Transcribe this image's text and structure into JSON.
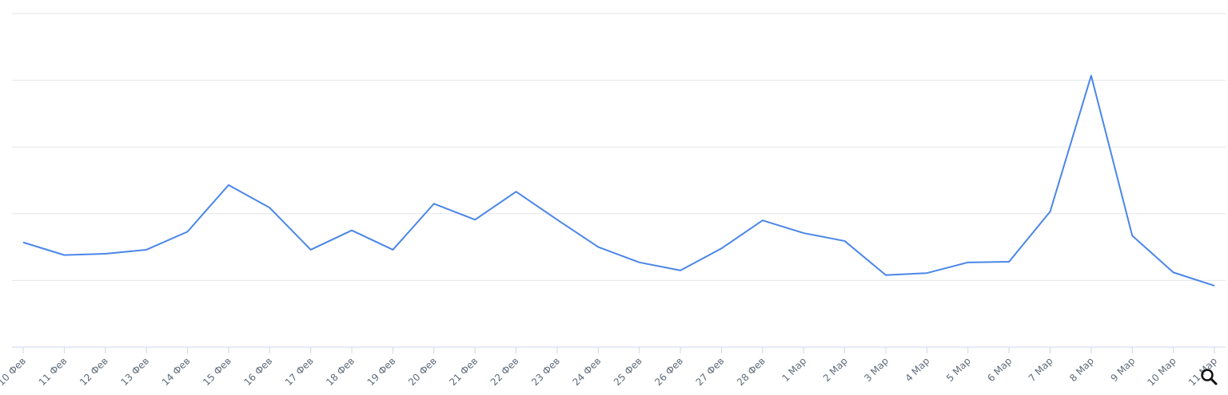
{
  "chart_data": {
    "type": "line",
    "categories": [
      "10 Фев",
      "11 Фев",
      "12 Фев",
      "13 Фев",
      "14 Фев",
      "15 Фев",
      "16 Фев",
      "17 Фев",
      "18 Фев",
      "19 Фев",
      "20 Фев",
      "21 Фев",
      "22 Фев",
      "23 Фев",
      "24 Фев",
      "25 Фев",
      "26 Фев",
      "27 Фев",
      "28 Фев",
      "1 Мар",
      "2 Мар",
      "3 Мар",
      "4 Мар",
      "5 Мар",
      "6 Мар",
      "7 Мар",
      "8 Мар",
      "9 Мар",
      "10 Мар",
      "11 Мар"
    ],
    "series": [
      {
        "color": "#4a86e8",
        "values": [
          1.57,
          1.38,
          1.4,
          1.46,
          1.73,
          2.43,
          2.09,
          1.46,
          1.75,
          1.46,
          2.15,
          1.91,
          2.33,
          1.91,
          1.5,
          1.27,
          1.15,
          1.48,
          1.9,
          1.71,
          1.59,
          1.08,
          1.11,
          1.27,
          1.28,
          2.03,
          4.07,
          1.67,
          1.12,
          0.92
        ]
      }
    ],
    "ylim": [
      0,
      5
    ],
    "yticks": [
      1,
      2,
      3,
      4,
      5
    ],
    "grid": true
  }
}
